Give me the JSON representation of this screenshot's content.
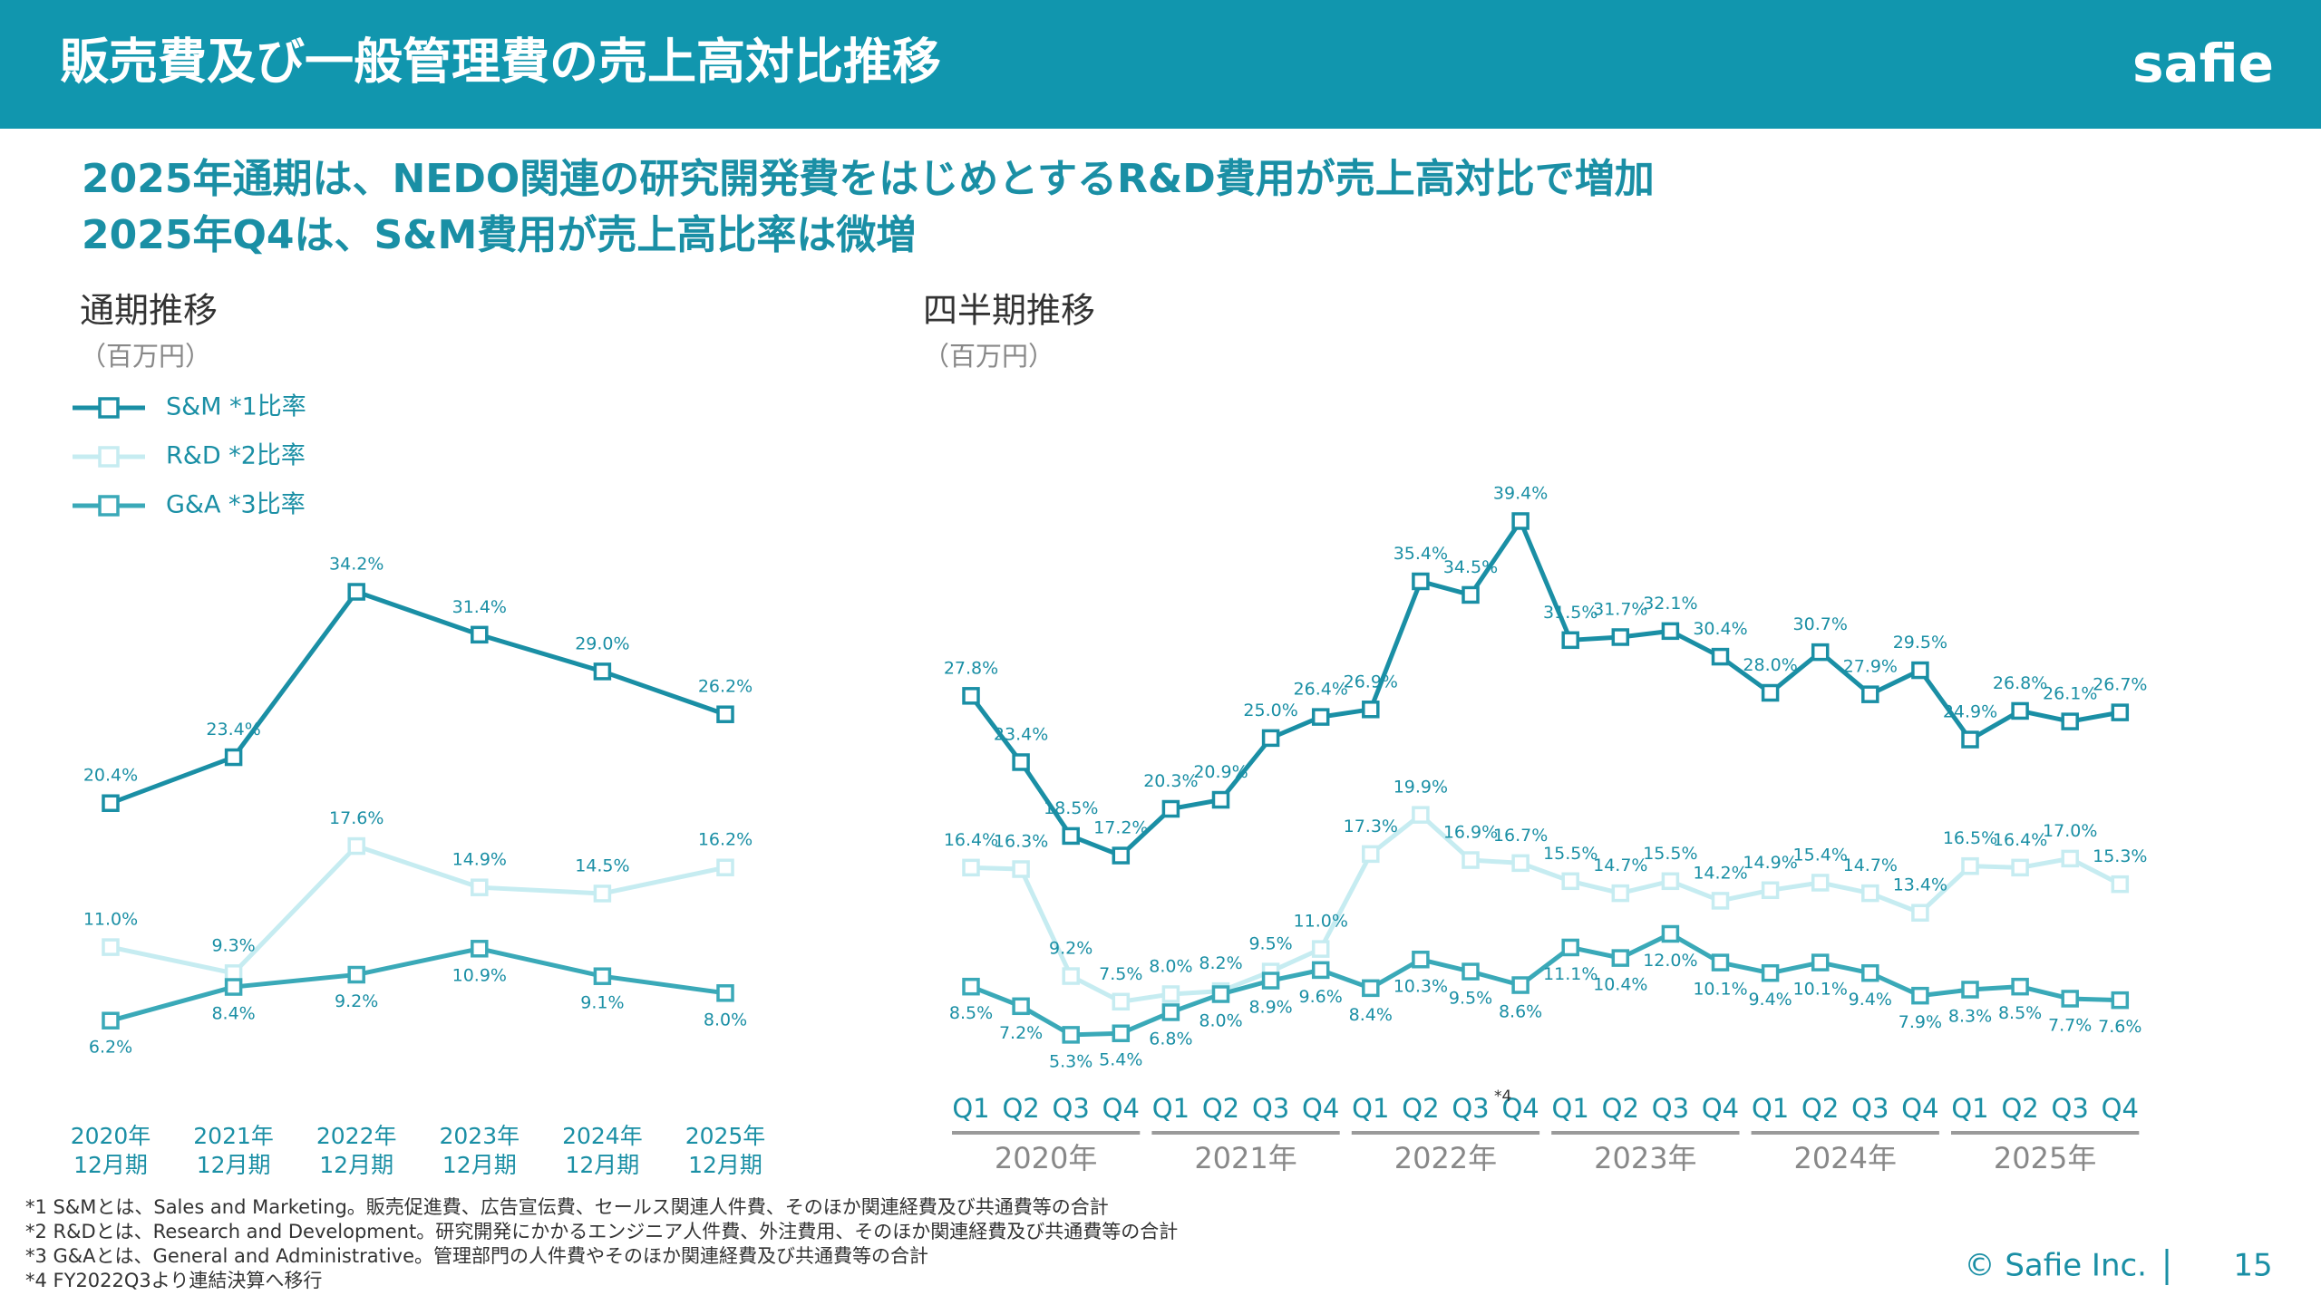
{
  "header": {
    "title": "販売費及び一般管理費の売上高対比推移",
    "logo": "safie"
  },
  "subtitle": [
    "2025年通期は、NEDO関連の研究開発費をはじめとするR&D費用が売上高対比で増加",
    "2025年Q4は、S&M費用が売上高比率は微増"
  ],
  "chart_data": [
    {
      "type": "line",
      "title": "通期推移",
      "unit": "（百万円）",
      "ylim": [
        0,
        40
      ],
      "categories": [
        [
          "2020年",
          "12月期"
        ],
        [
          "2021年",
          "12月期"
        ],
        [
          "2022年",
          "12月期"
        ],
        [
          "2023年",
          "12月期"
        ],
        [
          "2024年",
          "12月期"
        ],
        [
          "2025年",
          "12月期"
        ]
      ],
      "series": [
        {
          "name": "S&M *1比率",
          "color": "#1a8fa5",
          "values": [
            20.4,
            23.4,
            34.2,
            31.4,
            29.0,
            26.2
          ],
          "value_labels": [
            "20.4%",
            "23.4%",
            "34.2%",
            "31.4%",
            "29.0%",
            "26.2%"
          ]
        },
        {
          "name": "R&D *2比率",
          "color": "#c6ecf1",
          "values": [
            11.0,
            9.3,
            17.6,
            14.9,
            14.5,
            16.2
          ],
          "value_labels": [
            "11.0%",
            "9.3%",
            "17.6%",
            "14.9%",
            "14.5%",
            "16.2%"
          ]
        },
        {
          "name": "G&A *3比率",
          "color": "#3aa9b8",
          "values": [
            6.2,
            8.4,
            9.2,
            10.9,
            9.1,
            8.0
          ],
          "value_labels": [
            "6.2%",
            "8.4%",
            "9.2%",
            "10.9%",
            "9.1%",
            "8.0%"
          ]
        }
      ]
    },
    {
      "type": "line",
      "title": "四半期推移",
      "unit": "（百万円）",
      "ylim": [
        0,
        40
      ],
      "annotation": "*4",
      "categories": [
        "Q1",
        "Q2",
        "Q3",
        "Q4",
        "Q1",
        "Q2",
        "Q3",
        "Q4",
        "Q1",
        "Q2",
        "Q3",
        "Q4",
        "Q1",
        "Q2",
        "Q3",
        "Q4",
        "Q1",
        "Q2",
        "Q3",
        "Q4",
        "Q1",
        "Q2",
        "Q3",
        "Q4"
      ],
      "groups": [
        "2020年",
        "2021年",
        "2022年",
        "2023年",
        "2024年",
        "2025年"
      ],
      "series": [
        {
          "name": "S&M",
          "color": "#1a8fa5",
          "values": [
            27.8,
            23.4,
            18.5,
            17.2,
            20.3,
            20.9,
            25.0,
            26.4,
            26.9,
            35.4,
            34.5,
            39.4,
            31.5,
            31.7,
            32.1,
            30.4,
            28.0,
            30.7,
            27.9,
            29.5,
            24.9,
            26.8,
            26.1,
            26.7
          ],
          "value_labels": [
            "27.8%",
            "23.4%",
            "18.5%",
            "17.2%",
            "20.3%",
            "20.9%",
            "25.0%",
            "26.4%",
            "26.9%",
            "35.4%",
            "34.5%",
            "39.4%",
            "31.5%",
            "31.7%",
            "32.1%",
            "30.4%",
            "28.0%",
            "30.7%",
            "27.9%",
            "29.5%",
            "24.9%",
            "26.8%",
            "26.1%",
            "26.7%"
          ]
        },
        {
          "name": "R&D",
          "color": "#c6ecf1",
          "values": [
            16.4,
            16.3,
            9.2,
            7.5,
            8.0,
            8.2,
            9.5,
            11.0,
            17.3,
            19.9,
            16.9,
            16.7,
            15.5,
            14.7,
            15.5,
            14.2,
            14.9,
            15.4,
            14.7,
            13.4,
            16.5,
            16.4,
            17.0,
            15.3
          ],
          "value_labels": [
            "16.4%",
            "16.3%",
            "9.2%",
            "7.5%",
            "8.0%",
            "8.2%",
            "9.5%",
            "11.0%",
            "17.3%",
            "19.9%",
            "16.9%",
            "16.7%",
            "15.5%",
            "14.7%",
            "15.5%",
            "14.2%",
            "14.9%",
            "15.4%",
            "14.7%",
            "13.4%",
            "16.5%",
            "16.4%",
            "17.0%",
            "15.3%"
          ]
        },
        {
          "name": "G&A",
          "color": "#3aa9b8",
          "values": [
            8.5,
            7.2,
            5.3,
            5.4,
            6.8,
            8.0,
            8.9,
            9.6,
            8.4,
            10.3,
            9.5,
            8.6,
            11.1,
            10.4,
            12.0,
            10.1,
            9.4,
            10.1,
            9.4,
            7.9,
            8.3,
            8.5,
            7.7,
            7.6
          ],
          "value_labels": [
            "8.5%",
            "7.2%",
            "5.3%",
            "5.4%",
            "6.8%",
            "8.0%",
            "8.9%",
            "9.6%",
            "8.4%",
            "10.3%",
            "9.5%",
            "8.6%",
            "11.1%",
            "10.4%",
            "12.0%",
            "10.1%",
            "9.4%",
            "10.1%",
            "9.4%",
            "7.9%",
            "8.3%",
            "8.5%",
            "7.7%",
            "7.6%"
          ]
        }
      ]
    }
  ],
  "footnotes": [
    "*1 S&Mとは、Sales and Marketing。販売促進費、広告宣伝費、セールス関連人件費、そのほか関連経費及び共通費等の合計",
    "*2 R&Dとは、Research and Development。研究開発にかかるエンジニア人件費、外注費用、そのほか関連経費及び共通費等の合計",
    "*3 G&Aとは、General and Administrative。管理部門の人件費やそのほか関連経費及び共通費等の合計",
    "*4 FY2022Q3より連結決算へ移行"
  ],
  "footer": {
    "copyright": "© Safie Inc.",
    "page": "15"
  }
}
